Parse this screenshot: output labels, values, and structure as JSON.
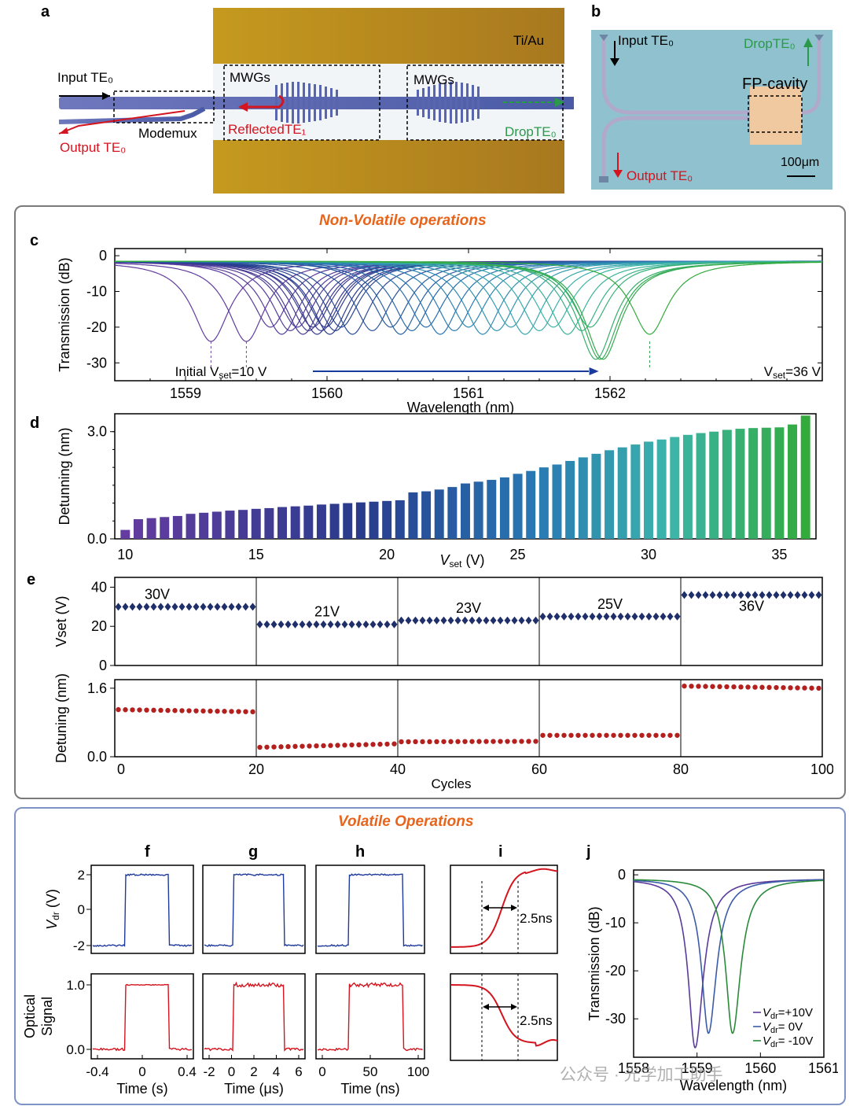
{
  "panels": {
    "a": {
      "label": "a",
      "electrode": "Ti/Au",
      "input": "Input TE₀",
      "mwgs_left": "MWGs",
      "mwgs_right": "MWGs",
      "reflected": "ReflectedTE₁",
      "drop": "DropTE₀",
      "modemux": "Modemux",
      "output": "Output TE₀"
    },
    "b": {
      "label": "b",
      "input": "Input TE₀",
      "drop": "DropTE₀",
      "cavity": "FP-cavity",
      "output": "Output TE₀",
      "scale": "100μm"
    },
    "nonvolatile_title": "Non-Volatile operations",
    "volatile_title": "Volatile Operations",
    "c": {
      "label": "c"
    },
    "d": {
      "label": "d"
    },
    "e": {
      "label": "e"
    },
    "f": {
      "label": "f"
    },
    "g": {
      "label": "g"
    },
    "h": {
      "label": "h"
    },
    "i": {
      "label": "i"
    },
    "j": {
      "label": "j"
    }
  },
  "watermark": "公众号 · 光学加工助手",
  "chart_data": [
    {
      "id": "c",
      "type": "line",
      "ylabel": "Transmission (dB)",
      "xlabel": "Wavelength (nm)",
      "xlim": [
        1558.5,
        1563.5
      ],
      "ylim": [
        -35,
        2
      ],
      "xticks": [
        1559,
        1560,
        1561,
        1562
      ],
      "yticks": [
        0,
        -10,
        -20,
        -30
      ],
      "resonances_nm": [
        1559.18,
        1559.43,
        1559.6,
        1559.68,
        1559.74,
        1559.79,
        1559.83,
        1559.87,
        1559.9,
        1559.93,
        1559.96,
        1559.99,
        1560.02,
        1560.06,
        1560.1,
        1560.18,
        1560.32,
        1560.45,
        1560.52,
        1560.6,
        1560.7,
        1560.8,
        1560.9,
        1561.0,
        1561.1,
        1561.2,
        1561.3,
        1561.4,
        1561.5,
        1561.6,
        1561.7,
        1561.8,
        1561.86,
        1561.9,
        1561.93,
        1561.95,
        1562.28
      ],
      "annotation_start": "Initial V",
      "annotation_start_sub": "set",
      "annotation_start_val": "=10 V",
      "annotation_end": "V",
      "annotation_end_sub": "set",
      "annotation_end_val": "=36 V"
    },
    {
      "id": "d",
      "type": "bar",
      "ylabel": "Detunning (nm)",
      "xlabel": "V",
      "xlabel_sub": "set",
      "xlabel_unit": " (V)",
      "xlim": [
        9.6,
        36.4
      ],
      "ylim": [
        0,
        3.5
      ],
      "xticks": [
        10,
        15,
        20,
        25,
        30,
        35
      ],
      "yticks": [
        0.0,
        3.0
      ],
      "ytick_labels": [
        "0.0",
        "3.0"
      ],
      "x": [
        10,
        10.5,
        11,
        11.5,
        12,
        12.5,
        13,
        13.5,
        14,
        14.5,
        15,
        15.5,
        16,
        16.5,
        17,
        17.5,
        18,
        18.5,
        19,
        19.5,
        20,
        20.5,
        21,
        21.5,
        22,
        22.5,
        23,
        23.5,
        24,
        24.5,
        25,
        25.5,
        26,
        26.5,
        27,
        27.5,
        28,
        28.5,
        29,
        29.5,
        30,
        30.5,
        31,
        31.5,
        32,
        32.5,
        33,
        33.5,
        34,
        34.5,
        35,
        35.5,
        36
      ],
      "values": [
        0.25,
        0.55,
        0.58,
        0.61,
        0.64,
        0.7,
        0.73,
        0.76,
        0.79,
        0.81,
        0.84,
        0.86,
        0.89,
        0.91,
        0.93,
        0.96,
        0.98,
        1.0,
        1.02,
        1.04,
        1.06,
        1.08,
        1.3,
        1.33,
        1.38,
        1.45,
        1.55,
        1.6,
        1.65,
        1.72,
        1.82,
        1.9,
        2.0,
        2.08,
        2.18,
        2.28,
        2.38,
        2.48,
        2.56,
        2.64,
        2.72,
        2.78,
        2.85,
        2.91,
        2.96,
        3.0,
        3.05,
        3.08,
        3.1,
        3.11,
        3.12,
        3.2,
        3.45
      ]
    },
    {
      "id": "e-top",
      "type": "scatter",
      "ylabel": "Vset (V)",
      "xlim": [
        0,
        100
      ],
      "ylim": [
        0,
        45
      ],
      "yticks": [
        0,
        20,
        40
      ],
      "dividers": [
        20,
        40,
        60,
        80
      ],
      "levels": [
        {
          "label": "30V",
          "from": 0,
          "to": 19,
          "value": 30
        },
        {
          "label": "21V",
          "from": 20,
          "to": 39,
          "value": 21
        },
        {
          "label": "23V",
          "from": 40,
          "to": 59,
          "value": 23
        },
        {
          "label": "25V",
          "from": 60,
          "to": 79,
          "value": 25
        },
        {
          "label": "36V",
          "from": 80,
          "to": 99,
          "value": 36
        }
      ]
    },
    {
      "id": "e-bottom",
      "type": "scatter",
      "ylabel": "Detuning (nm)",
      "xlabel": "Cycles",
      "xlim": [
        0,
        100
      ],
      "ylim": [
        0,
        1.8
      ],
      "xticks": [
        0,
        20,
        40,
        60,
        80,
        100
      ],
      "yticks": [
        0.0,
        1.6
      ],
      "ytick_labels": [
        "0.0",
        "1.6"
      ],
      "levels": [
        {
          "from": 0,
          "to": 19,
          "start": 1.1,
          "end": 1.05
        },
        {
          "from": 20,
          "to": 39,
          "start": 0.22,
          "end": 0.3
        },
        {
          "from": 40,
          "to": 59,
          "start": 0.35,
          "end": 0.36
        },
        {
          "from": 60,
          "to": 79,
          "start": 0.5,
          "end": 0.5
        },
        {
          "from": 80,
          "to": 99,
          "start": 1.65,
          "end": 1.6
        }
      ]
    },
    {
      "id": "fgh",
      "type": "line",
      "ylabel_top": "V",
      "ylabel_top_sub": "dr",
      "ylabel_top_unit": " (V)",
      "ylabel_bottom": "Optical Signal",
      "yticks_top": [
        2,
        0,
        -2
      ],
      "yticks_bottom": [
        "1.0",
        "0.0"
      ],
      "panels": [
        {
          "id": "f",
          "xlabel": "Time (s)",
          "xticks": [
            "-0.4",
            "0",
            "0.4"
          ]
        },
        {
          "id": "g",
          "xlabel": "Time (μs)",
          "xticks": [
            "-2",
            "0",
            "2",
            "4",
            "6"
          ]
        },
        {
          "id": "h",
          "xlabel": "Time (ns)",
          "xticks": [
            "0",
            "50",
            "100"
          ]
        }
      ]
    },
    {
      "id": "i",
      "type": "line",
      "rise_time": "2.5ns",
      "fall_time": "2.5ns"
    },
    {
      "id": "j",
      "type": "line",
      "ylabel": "Transmission (dB)",
      "xlabel": "Wavelength (nm)",
      "xlim": [
        1558,
        1561
      ],
      "ylim": [
        -38,
        1
      ],
      "xticks": [
        1558,
        1559,
        1560,
        1561
      ],
      "yticks": [
        0,
        -10,
        -20,
        -30
      ],
      "series": [
        {
          "name": "V",
          "sub": "dr",
          "suffix": "=+10V",
          "resonance": 1558.97,
          "depth": -36,
          "color": "#5a3a9a"
        },
        {
          "name": "V",
          "sub": "dr",
          "suffix": "=    0V",
          "resonance": 1559.18,
          "depth": -33,
          "color": "#3b5ba8"
        },
        {
          "name": "V",
          "sub": "dr",
          "suffix": "= -10V",
          "resonance": 1559.56,
          "depth": -33,
          "color": "#2a8a3a"
        }
      ]
    }
  ]
}
